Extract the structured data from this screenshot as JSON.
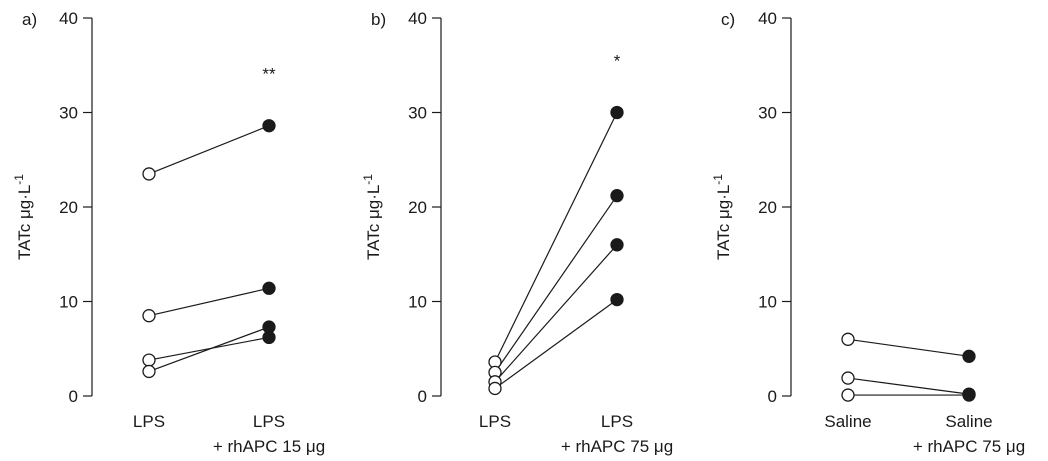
{
  "chart_data": [
    {
      "type": "scatter",
      "panel_label": "a)",
      "ylabel": "TATc μg·L",
      "ylabel_sup": "-1",
      "ylim": [
        0,
        40
      ],
      "yticks": [
        0,
        10,
        20,
        30,
        40
      ],
      "categories": [
        {
          "line1": "LPS",
          "line2": ""
        },
        {
          "line1": "LPS",
          "line2": "+ rhAPC 15 μg"
        }
      ],
      "significance": "**",
      "pairs": [
        [
          23.5,
          28.6
        ],
        [
          8.5,
          11.4
        ],
        [
          3.8,
          6.2
        ],
        [
          2.6,
          7.3
        ]
      ]
    },
    {
      "type": "scatter",
      "panel_label": "b)",
      "ylabel": "TATc μg·L",
      "ylabel_sup": "-1",
      "ylim": [
        0,
        40
      ],
      "yticks": [
        0,
        10,
        20,
        30,
        40
      ],
      "categories": [
        {
          "line1": "LPS",
          "line2": ""
        },
        {
          "line1": "LPS",
          "line2": "+ rhAPC 75 μg"
        }
      ],
      "significance": "*",
      "pairs": [
        [
          3.6,
          30.0
        ],
        [
          2.5,
          21.2
        ],
        [
          1.5,
          16.0
        ],
        [
          0.8,
          10.2
        ]
      ]
    },
    {
      "type": "scatter",
      "panel_label": "c)",
      "ylabel": "TATc μg·L",
      "ylabel_sup": "-1",
      "ylim": [
        0,
        40
      ],
      "yticks": [
        0,
        10,
        20,
        30,
        40
      ],
      "categories": [
        {
          "line1": "Saline",
          "line2": ""
        },
        {
          "line1": "Saline",
          "line2": "+ rhAPC 75 μg"
        }
      ],
      "significance": "",
      "pairs": [
        [
          6.0,
          4.2
        ],
        [
          1.9,
          0.2
        ],
        [
          0.1,
          0.1
        ]
      ]
    }
  ]
}
